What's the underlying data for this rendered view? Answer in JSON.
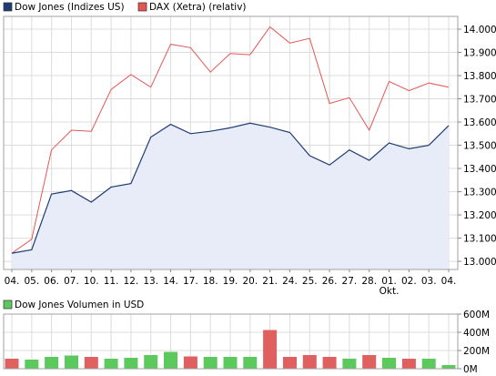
{
  "chart_data": {
    "type": "line",
    "x_labels": [
      "04.",
      "05.",
      "06.",
      "07.",
      "10.",
      "11.",
      "12.",
      "13.",
      "14.",
      "17.",
      "18.",
      "19.",
      "20.",
      "21.",
      "24.",
      "25.",
      "26.",
      "27.",
      "28.",
      "01.",
      "02.",
      "03.",
      "04."
    ],
    "x_sublabel": {
      "index": 19,
      "text": "Okt."
    },
    "series": [
      {
        "name": "Dow Jones (Indizes US)",
        "color": "#1f3b73",
        "fill": "#e7ecf8",
        "values": [
          13035,
          13050,
          13290,
          13305,
          13255,
          13320,
          13335,
          13535,
          13590,
          13550,
          13560,
          13575,
          13595,
          13578,
          13555,
          13455,
          13415,
          13480,
          13435,
          13510,
          13485,
          13500,
          13585
        ]
      },
      {
        "name": "DAX (Xetra) (relativ)",
        "color": "#e45555",
        "values": [
          13035,
          13095,
          13480,
          13565,
          13560,
          13740,
          13805,
          13750,
          13935,
          13920,
          13815,
          13895,
          13890,
          14010,
          13940,
          13960,
          13680,
          13705,
          13565,
          13775,
          13735,
          13768,
          13750
        ]
      }
    ],
    "y_ticks": [
      "14.000",
      "13.900",
      "13.800",
      "13.700",
      "13.600",
      "13.500",
      "13.400",
      "13.300",
      "13.200",
      "13.100",
      "13.000"
    ],
    "ylim": [
      12965,
      14055
    ],
    "grid": true,
    "legend": "top-left",
    "volume": {
      "title": "Dow Jones Volumen in USD",
      "legend_color": "#5cc95c",
      "y_ticks": [
        "600M",
        "400M",
        "200M",
        "0M"
      ],
      "ylim": [
        0,
        600
      ],
      "unit": "M",
      "up_color": "#5cc95c",
      "down_color": "#e06060",
      "values": [
        110,
        100,
        130,
        145,
        130,
        110,
        120,
        150,
        185,
        135,
        130,
        130,
        130,
        425,
        130,
        150,
        130,
        110,
        150,
        120,
        110,
        110,
        40
      ],
      "direction": [
        "down",
        "up",
        "up",
        "up",
        "down",
        "up",
        "up",
        "up",
        "up",
        "down",
        "up",
        "up",
        "up",
        "down",
        "down",
        "down",
        "down",
        "up",
        "down",
        "up",
        "down",
        "up",
        "up"
      ]
    }
  }
}
